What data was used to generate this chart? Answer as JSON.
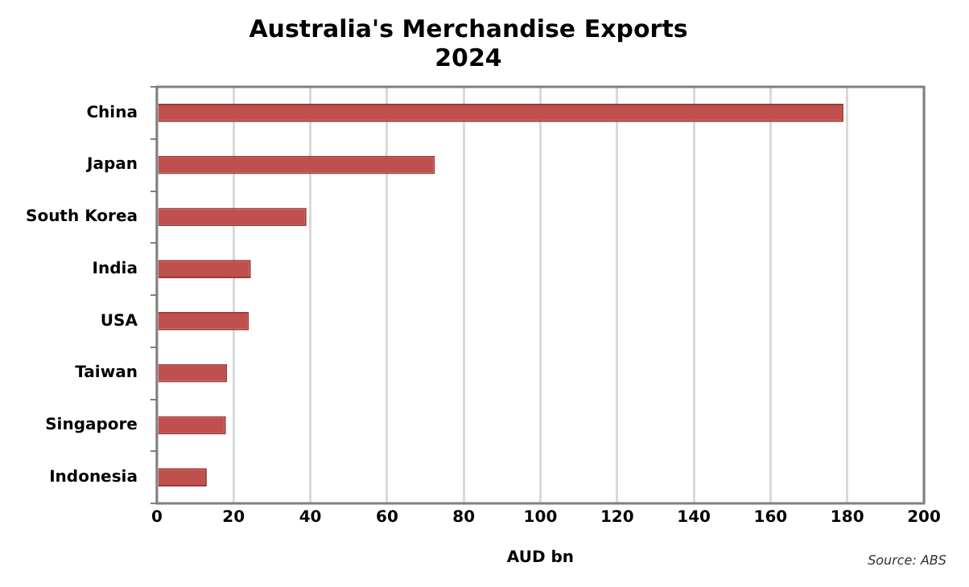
{
  "chart_data": {
    "type": "bar",
    "orientation": "horizontal",
    "title": "Australia's Merchandise Exports",
    "subtitle": "2024",
    "xlabel": "AUD bn",
    "categories": [
      "China",
      "Japan",
      "South Korea",
      "India",
      "USA",
      "Taiwan",
      "Singapore",
      "Indonesia"
    ],
    "values": [
      179,
      72.5,
      39,
      24.5,
      24,
      18.3,
      18,
      13
    ],
    "color": "#c0504d",
    "xlim": [
      0,
      200
    ],
    "xticks": [
      0,
      20,
      40,
      60,
      80,
      100,
      120,
      140,
      160,
      180,
      200
    ],
    "grid": "x",
    "legend": false,
    "annotations": [
      "Source: ABS"
    ]
  }
}
